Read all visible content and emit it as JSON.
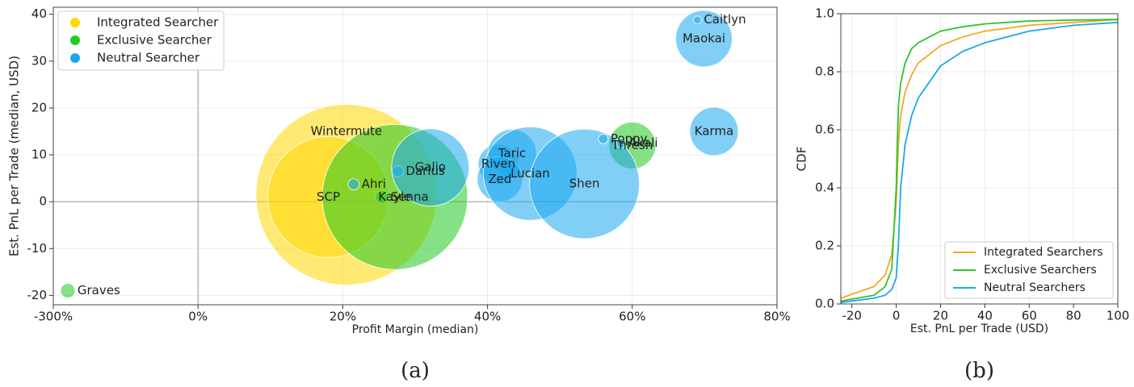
{
  "chart_data": [
    {
      "type": "bubble",
      "caption": "(a)",
      "xlabel": "Profit Margin (median)",
      "ylabel": "Est. PnL per Trade (median, USD)",
      "xscale": "piecewise",
      "xlim": [
        -300,
        80
      ],
      "xticks": [
        {
          "value": -300,
          "label": "-300%"
        },
        {
          "value": 0,
          "label": "0%"
        },
        {
          "value": 20,
          "label": "20%"
        },
        {
          "value": 40,
          "label": "40%"
        },
        {
          "value": 60,
          "label": "60%"
        },
        {
          "value": 80,
          "label": "80%"
        }
      ],
      "ylim": [
        -22,
        41.5
      ],
      "yticks": [
        -20,
        -10,
        0,
        10,
        20,
        30,
        40
      ],
      "grid": true,
      "legend": "upper left",
      "series": [
        {
          "name": "Integrated Searcher",
          "color": "#ffd700",
          "labels": [
            "Wintermute",
            "SCP"
          ],
          "x": [
            20.5,
            18
          ],
          "values": [
            1.5,
            1
          ],
          "sizes": [
            3136,
            1406
          ]
        },
        {
          "name": "Exclusive Searcher",
          "color": "#22c922",
          "labels": [
            "Graves",
            "Senna",
            "Kayle",
            "Thresh"
          ],
          "x": [
            -270,
            25.4,
            27.2,
            60
          ],
          "values": [
            -19,
            1,
            1,
            12
          ],
          "sizes": [
            20,
            16,
            2025,
            210
          ]
        },
        {
          "name": "Neutral Searcher",
          "color": "#1aa7ee",
          "labels": [
            "Ahri",
            "Darius",
            "Galio",
            "Riven",
            "Taric",
            "Zed",
            "Lucian",
            "Shen",
            "Poppy",
            "Akali",
            "Karma",
            "Maokai",
            "Caitlyn"
          ],
          "x": [
            21.5,
            27.6,
            32.1,
            41.5,
            43.4,
            41.7,
            45.9,
            53.4,
            56,
            58.5,
            71.3,
            69.9,
            69
          ],
          "values": [
            3.7,
            6.5,
            7.3,
            8,
            10.3,
            4.8,
            6,
            3.8,
            13.4,
            12.5,
            15,
            34.8,
            38.8
          ],
          "sizes": [
            12,
            12,
            576,
            156,
            225,
            196,
            841,
            1156,
            9,
            9,
            225,
            306,
            6
          ]
        }
      ]
    },
    {
      "type": "line",
      "caption": "(b)",
      "xlabel": "Est. PnL per Trade (USD)",
      "ylabel": "CDF",
      "xlim": [
        -25,
        100
      ],
      "xticks": [
        -20,
        0,
        20,
        40,
        60,
        80,
        100
      ],
      "ylim": [
        0,
        1
      ],
      "yticks": [
        {
          "value": 0,
          "label": "0.0"
        },
        0.2,
        0.4,
        0.6,
        0.8,
        {
          "value": 1,
          "label": "1.0"
        }
      ],
      "grid": true,
      "legend": "lower right",
      "x": [
        -25,
        -10,
        -5,
        -2,
        0,
        1,
        2,
        4,
        7,
        10,
        20,
        30,
        40,
        60,
        80,
        100
      ],
      "series": [
        {
          "name": "Integrated Searchers",
          "color": "#f5a623",
          "values": [
            0.02,
            0.06,
            0.1,
            0.17,
            0.35,
            0.55,
            0.65,
            0.73,
            0.79,
            0.83,
            0.89,
            0.92,
            0.94,
            0.96,
            0.97,
            0.98
          ]
        },
        {
          "name": "Exclusive Searchers",
          "color": "#2ec42e",
          "values": [
            0.01,
            0.03,
            0.06,
            0.12,
            0.4,
            0.68,
            0.76,
            0.83,
            0.88,
            0.9,
            0.94,
            0.955,
            0.965,
            0.975,
            0.978,
            0.98
          ]
        },
        {
          "name": "Neutral Searchers",
          "color": "#1da8e8",
          "values": [
            0.005,
            0.02,
            0.03,
            0.05,
            0.09,
            0.2,
            0.4,
            0.55,
            0.65,
            0.71,
            0.82,
            0.87,
            0.9,
            0.94,
            0.96,
            0.97
          ]
        }
      ]
    }
  ]
}
